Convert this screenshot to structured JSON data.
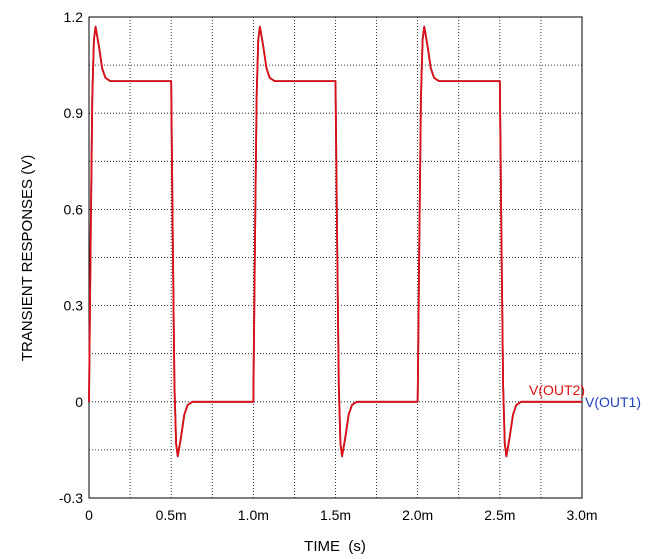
{
  "chart_data": {
    "type": "line",
    "title": "",
    "xlabel": "TIME  (s)",
    "ylabel": "TRANSIENT RESPONSES  (V)",
    "xlim": [
      0,
      0.003
    ],
    "ylim": [
      -0.3,
      1.2
    ],
    "x_ticks": [
      {
        "value": 0,
        "label": "0"
      },
      {
        "value": 0.0005,
        "label": "0.5m"
      },
      {
        "value": 0.001,
        "label": "1.0m"
      },
      {
        "value": 0.0015,
        "label": "1.5m"
      },
      {
        "value": 0.002,
        "label": "2.0m"
      },
      {
        "value": 0.0025,
        "label": "2.5m"
      },
      {
        "value": 0.003,
        "label": "3.0m"
      }
    ],
    "y_ticks": [
      {
        "value": -0.3,
        "label": "-0.3"
      },
      {
        "value": 0,
        "label": "0"
      },
      {
        "value": 0.3,
        "label": "0.3"
      },
      {
        "value": 0.6,
        "label": "0.6"
      },
      {
        "value": 0.9,
        "label": "0.9"
      },
      {
        "value": 1.2,
        "label": "1.2"
      }
    ],
    "grid": true,
    "series": [
      {
        "name": "V(OUT1)",
        "color": "#1f3fbf",
        "x": [
          0,
          1e-05,
          2e-05,
          3e-05,
          4e-05,
          6e-05,
          8e-05,
          0.0001,
          0.00013,
          0.00016,
          0.0002,
          0.0003,
          0.0005,
          0.00051,
          0.00052,
          0.00053,
          0.00054,
          0.00056,
          0.00058,
          0.0006,
          0.00063,
          0.00066,
          0.0007,
          0.0008,
          0.001,
          0.00101,
          0.00102,
          0.00103,
          0.00104,
          0.00106,
          0.00108,
          0.0011,
          0.00113,
          0.00116,
          0.0012,
          0.0013,
          0.0015,
          0.00151,
          0.00152,
          0.00153,
          0.00154,
          0.00156,
          0.00158,
          0.0016,
          0.00163,
          0.00166,
          0.0017,
          0.0018,
          0.002,
          0.00201,
          0.00202,
          0.00203,
          0.00204,
          0.00206,
          0.00208,
          0.0021,
          0.00213,
          0.00216,
          0.0022,
          0.0023,
          0.0025,
          0.00251,
          0.00252,
          0.00253,
          0.00254,
          0.00256,
          0.00258,
          0.0026,
          0.00263,
          0.00266,
          0.0027,
          0.0028,
          0.003
        ],
        "values": [
          0,
          0.5,
          0.95,
          1.13,
          1.17,
          1.11,
          1.04,
          1.01,
          1.0,
          1.0,
          1.0,
          1.0,
          1.0,
          0.5,
          0.05,
          -0.13,
          -0.17,
          -0.11,
          -0.04,
          -0.01,
          0,
          0,
          0,
          0,
          0,
          0.5,
          0.95,
          1.13,
          1.17,
          1.11,
          1.04,
          1.01,
          1.0,
          1.0,
          1.0,
          1.0,
          1.0,
          0.5,
          0.05,
          -0.13,
          -0.17,
          -0.11,
          -0.04,
          -0.01,
          0,
          0,
          0,
          0,
          0,
          0.5,
          0.95,
          1.13,
          1.17,
          1.11,
          1.04,
          1.01,
          1.0,
          1.0,
          1.0,
          1.0,
          1.0,
          0.5,
          0.05,
          -0.13,
          -0.17,
          -0.11,
          -0.04,
          -0.01,
          0,
          0,
          0,
          0,
          0
        ]
      },
      {
        "name": "V(OUT2)",
        "color": "#e01010",
        "x": [
          0,
          1e-05,
          2e-05,
          3e-05,
          4e-05,
          6e-05,
          8e-05,
          0.0001,
          0.00013,
          0.00016,
          0.0002,
          0.0003,
          0.0005,
          0.00051,
          0.00052,
          0.00053,
          0.00054,
          0.00056,
          0.00058,
          0.0006,
          0.00063,
          0.00066,
          0.0007,
          0.0008,
          0.001,
          0.00101,
          0.00102,
          0.00103,
          0.00104,
          0.00106,
          0.00108,
          0.0011,
          0.00113,
          0.00116,
          0.0012,
          0.0013,
          0.0015,
          0.00151,
          0.00152,
          0.00153,
          0.00154,
          0.00156,
          0.00158,
          0.0016,
          0.00163,
          0.00166,
          0.0017,
          0.0018,
          0.002,
          0.00201,
          0.00202,
          0.00203,
          0.00204,
          0.00206,
          0.00208,
          0.0021,
          0.00213,
          0.00216,
          0.0022,
          0.0023,
          0.0025,
          0.00251,
          0.00252,
          0.00253,
          0.00254,
          0.00256,
          0.00258,
          0.0026,
          0.00263,
          0.00266,
          0.0027,
          0.0028,
          0.003
        ],
        "values": [
          0,
          0.5,
          0.95,
          1.13,
          1.17,
          1.11,
          1.04,
          1.01,
          1.0,
          1.0,
          1.0,
          1.0,
          1.0,
          0.5,
          0.05,
          -0.13,
          -0.17,
          -0.11,
          -0.04,
          -0.01,
          0,
          0,
          0,
          0,
          0,
          0.5,
          0.95,
          1.13,
          1.17,
          1.11,
          1.04,
          1.01,
          1.0,
          1.0,
          1.0,
          1.0,
          1.0,
          0.5,
          0.05,
          -0.13,
          -0.17,
          -0.11,
          -0.04,
          -0.01,
          0,
          0,
          0,
          0,
          0,
          0.5,
          0.95,
          1.13,
          1.17,
          1.11,
          1.04,
          1.01,
          1.0,
          1.0,
          1.0,
          1.0,
          1.0,
          0.5,
          0.05,
          -0.13,
          -0.17,
          -0.11,
          -0.04,
          -0.01,
          0,
          0,
          0,
          0,
          0
        ]
      }
    ]
  }
}
